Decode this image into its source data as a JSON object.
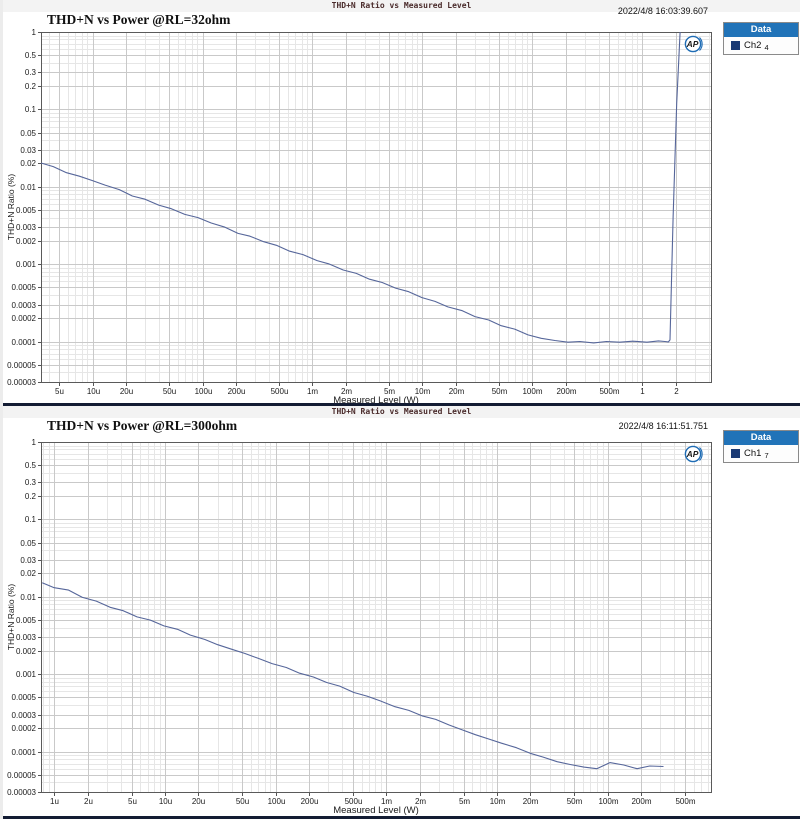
{
  "colors": {
    "curve": "#56669a",
    "grid_major": "#c9c9c9",
    "grid_minor": "#e6e6e6",
    "plot_border": "#5a5a5a",
    "tick_mark": "#555555",
    "legend_header_bg": "#2173b8",
    "legend_swatch": "#1a3a74",
    "accent_bar": "#131c33",
    "ap_logo": "#1e6cb5"
  },
  "panels": [
    {
      "window_title": "THD+N Ratio vs Measured Level",
      "title": "THD+N  vs Power @RL=32ohm",
      "timestamp": "2022/4/8 16:03:39.607",
      "legend": {
        "header": "Data",
        "channel": "Ch2",
        "index": "4"
      }
    },
    {
      "window_title": "THD+N Ratio vs Measured Level",
      "title": "THD+N  vs Power @RL=300ohm",
      "timestamp": "2022/4/8 16:11:51.751",
      "legend": {
        "header": "Data",
        "channel": "Ch1",
        "index": "7"
      }
    }
  ],
  "chart_data": [
    {
      "type": "line",
      "title": "THD+N  vs Power @RL=32ohm",
      "header": "THD+N Ratio vs Measured Level",
      "xlabel": "Measured Level (W)",
      "ylabel": "THD+N Ratio (%)",
      "xscale": "log",
      "yscale": "log",
      "xlim": [
        3.4e-06,
        4.2
      ],
      "ylim": [
        3e-05,
        1
      ],
      "grid": true,
      "legend_position": "outside-top-right",
      "x_ticks": [
        {
          "v": 5e-06,
          "l": "5u"
        },
        {
          "v": 1e-05,
          "l": "10u"
        },
        {
          "v": 2e-05,
          "l": "20u"
        },
        {
          "v": 5e-05,
          "l": "50u"
        },
        {
          "v": 0.0001,
          "l": "100u"
        },
        {
          "v": 0.0002,
          "l": "200u"
        },
        {
          "v": 0.0005,
          "l": "500u"
        },
        {
          "v": 0.001,
          "l": "1m"
        },
        {
          "v": 0.002,
          "l": "2m"
        },
        {
          "v": 0.005,
          "l": "5m"
        },
        {
          "v": 0.01,
          "l": "10m"
        },
        {
          "v": 0.02,
          "l": "20m"
        },
        {
          "v": 0.05,
          "l": "50m"
        },
        {
          "v": 0.1,
          "l": "100m"
        },
        {
          "v": 0.2,
          "l": "200m"
        },
        {
          "v": 0.5,
          "l": "500m"
        },
        {
          "v": 1,
          "l": "1"
        },
        {
          "v": 2,
          "l": "2"
        }
      ],
      "y_ticks": [
        {
          "v": 1,
          "l": "1"
        },
        {
          "v": 0.5,
          "l": "0.5"
        },
        {
          "v": 0.3,
          "l": "0.3"
        },
        {
          "v": 0.2,
          "l": "0.2"
        },
        {
          "v": 0.1,
          "l": "0.1"
        },
        {
          "v": 0.05,
          "l": "0.05"
        },
        {
          "v": 0.03,
          "l": "0.03"
        },
        {
          "v": 0.02,
          "l": "0.02"
        },
        {
          "v": 0.01,
          "l": "0.01"
        },
        {
          "v": 0.005,
          "l": "0.005"
        },
        {
          "v": 0.003,
          "l": "0.003"
        },
        {
          "v": 0.002,
          "l": "0.002"
        },
        {
          "v": 0.001,
          "l": "0.001"
        },
        {
          "v": 0.0005,
          "l": "0.0005"
        },
        {
          "v": 0.0003,
          "l": "0.0003"
        },
        {
          "v": 0.0002,
          "l": "0.0002"
        },
        {
          "v": 0.0001,
          "l": "0.0001"
        },
        {
          "v": 5e-05,
          "l": "0.00005"
        },
        {
          "v": 3e-05,
          "l": "0.00003"
        }
      ],
      "series": [
        {
          "name": "Ch2 4",
          "color": "#56669a",
          "x": [
            3.4e-06,
            4.4e-06,
            5.8e-06,
            7.6e-06,
            1e-05,
            1.3e-05,
            1.75e-05,
            2.3e-05,
            3e-05,
            4e-05,
            5.2e-05,
            6.9e-05,
            9.1e-05,
            0.00012,
            0.00016,
            0.00021,
            0.00027,
            0.00036,
            0.00047,
            0.00062,
            0.00082,
            0.0011,
            0.0014,
            0.0019,
            0.0025,
            0.0033,
            0.0043,
            0.0057,
            0.0075,
            0.0099,
            0.013,
            0.017,
            0.023,
            0.03,
            0.04,
            0.052,
            0.069,
            0.091,
            0.12,
            0.16,
            0.21,
            0.27,
            0.36,
            0.47,
            0.62,
            0.82,
            1.1,
            1.4,
            1.6,
            1.72,
            1.78,
            1.9,
            2.05,
            2.2
          ],
          "y": [
            0.0203,
            0.0182,
            0.0152,
            0.0137,
            0.012,
            0.0105,
            0.0092,
            0.0076,
            0.0069,
            0.0058,
            0.0052,
            0.0044,
            0.004,
            0.0034,
            0.003,
            0.0025,
            0.0023,
            0.00195,
            0.00175,
            0.00147,
            0.00133,
            0.00111,
            0.00101,
            0.00084,
            0.00076,
            0.00064,
            0.00058,
            0.00049,
            0.00044,
            0.00037,
            0.00033,
            0.00028,
            0.00025,
            0.00021,
            0.00019,
            0.00016,
            0.000145,
            0.000122,
            0.00011,
            0.000103,
            9.8e-05,
            0.0001,
            9.6e-05,
            0.0001,
            9.8e-05,
            0.000101,
            9.8e-05,
            0.000102,
            0.0001,
            9.9e-05,
            0.000105,
            0.004,
            0.12,
            1.0
          ]
        }
      ]
    },
    {
      "type": "line",
      "title": "THD+N  vs Power @RL=300ohm",
      "header": "THD+N Ratio vs Measured Level",
      "xlabel": "Measured Level (W)",
      "ylabel": "THD+N Ratio (%)",
      "xscale": "log",
      "yscale": "log",
      "xlim": [
        7.6e-07,
        0.86
      ],
      "ylim": [
        3e-05,
        1
      ],
      "grid": true,
      "legend_position": "outside-top-right",
      "x_ticks": [
        {
          "v": 1e-06,
          "l": "1u"
        },
        {
          "v": 2e-06,
          "l": "2u"
        },
        {
          "v": 5e-06,
          "l": "5u"
        },
        {
          "v": 1e-05,
          "l": "10u"
        },
        {
          "v": 2e-05,
          "l": "20u"
        },
        {
          "v": 5e-05,
          "l": "50u"
        },
        {
          "v": 0.0001,
          "l": "100u"
        },
        {
          "v": 0.0002,
          "l": "200u"
        },
        {
          "v": 0.0005,
          "l": "500u"
        },
        {
          "v": 0.001,
          "l": "1m"
        },
        {
          "v": 0.002,
          "l": "2m"
        },
        {
          "v": 0.005,
          "l": "5m"
        },
        {
          "v": 0.01,
          "l": "10m"
        },
        {
          "v": 0.02,
          "l": "20m"
        },
        {
          "v": 0.05,
          "l": "50m"
        },
        {
          "v": 0.1,
          "l": "100m"
        },
        {
          "v": 0.2,
          "l": "200m"
        },
        {
          "v": 0.5,
          "l": "500m"
        }
      ],
      "y_ticks": [
        {
          "v": 1,
          "l": "1"
        },
        {
          "v": 0.5,
          "l": "0.5"
        },
        {
          "v": 0.3,
          "l": "0.3"
        },
        {
          "v": 0.2,
          "l": "0.2"
        },
        {
          "v": 0.1,
          "l": "0.1"
        },
        {
          "v": 0.05,
          "l": "0.05"
        },
        {
          "v": 0.03,
          "l": "0.03"
        },
        {
          "v": 0.02,
          "l": "0.02"
        },
        {
          "v": 0.01,
          "l": "0.01"
        },
        {
          "v": 0.005,
          "l": "0.005"
        },
        {
          "v": 0.003,
          "l": "0.003"
        },
        {
          "v": 0.002,
          "l": "0.002"
        },
        {
          "v": 0.001,
          "l": "0.001"
        },
        {
          "v": 0.0005,
          "l": "0.0005"
        },
        {
          "v": 0.0003,
          "l": "0.0003"
        },
        {
          "v": 0.0002,
          "l": "0.0002"
        },
        {
          "v": 0.0001,
          "l": "0.0001"
        },
        {
          "v": 5e-05,
          "l": "0.00005"
        },
        {
          "v": 3e-05,
          "l": "0.00003"
        }
      ],
      "series": [
        {
          "name": "Ch1 7",
          "color": "#56669a",
          "x": [
            7.8e-07,
            1e-06,
            1.35e-06,
            1.8e-06,
            2.4e-06,
            3.2e-06,
            4.2e-06,
            5.6e-06,
            7.4e-06,
            9.8e-06,
            1.3e-05,
            1.7e-05,
            2.3e-05,
            3e-05,
            4e-05,
            5.3e-05,
            7e-05,
            9.3e-05,
            0.000125,
            0.000165,
            0.00022,
            0.00029,
            0.00038,
            0.00051,
            0.00067,
            0.00089,
            0.0012,
            0.0016,
            0.0021,
            0.0028,
            0.0037,
            0.0049,
            0.0064,
            0.0085,
            0.011,
            0.015,
            0.02,
            0.026,
            0.035,
            0.046,
            0.061,
            0.08,
            0.105,
            0.14,
            0.185,
            0.24,
            0.32
          ],
          "y": [
            0.0152,
            0.0131,
            0.0122,
            0.0098,
            0.0088,
            0.0073,
            0.0066,
            0.0055,
            0.005,
            0.0042,
            0.0038,
            0.0032,
            0.0028,
            0.0024,
            0.0021,
            0.00185,
            0.0016,
            0.00137,
            0.00122,
            0.00103,
            0.00092,
            0.00078,
            0.0007,
            0.00058,
            0.00052,
            0.00045,
            0.00038,
            0.00034,
            0.00029,
            0.00026,
            0.00022,
            0.00019,
            0.000165,
            0.000145,
            0.000128,
            0.000112,
            9.5e-05,
            8.5e-05,
            7.4e-05,
            6.8e-05,
            6.3e-05,
            6e-05,
            7.2e-05,
            6.7e-05,
            6e-05,
            6.5e-05,
            6.4e-05
          ]
        }
      ]
    }
  ]
}
